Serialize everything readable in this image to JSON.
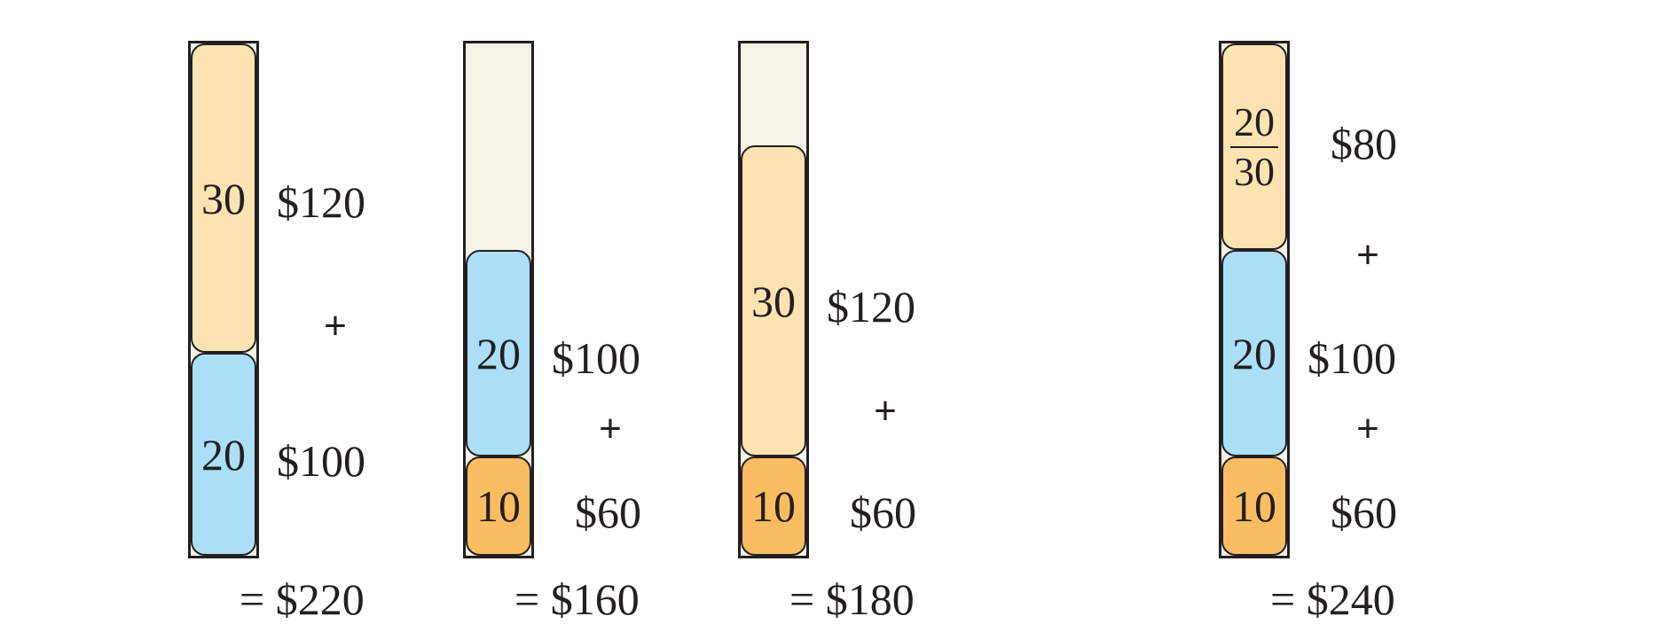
{
  "column1": {
    "blocks": [
      "30",
      "20"
    ],
    "costs": [
      "$120",
      "$100"
    ],
    "plus": "+",
    "total": "= $220"
  },
  "column2": {
    "blocks": [
      "20",
      "10"
    ],
    "costs": [
      "$100",
      "$60"
    ],
    "plus": "+",
    "total": "= $160"
  },
  "column3": {
    "blocks": [
      "30",
      "10"
    ],
    "costs": [
      "$120",
      "$60"
    ],
    "plus": "+",
    "total": "= $180"
  },
  "column4": {
    "fraction": {
      "numerator": "20",
      "denominator": "30"
    },
    "blocks": [
      "20",
      "10"
    ],
    "costs": [
      "$80",
      "$100",
      "$60"
    ],
    "plus": "+",
    "total": "= $240"
  },
  "colors": {
    "block_30": "#fde3b1",
    "block_20": "#abdff7",
    "block_10": "#fcbd62",
    "empty": "#f5f3e8",
    "ink": "#231f20"
  }
}
